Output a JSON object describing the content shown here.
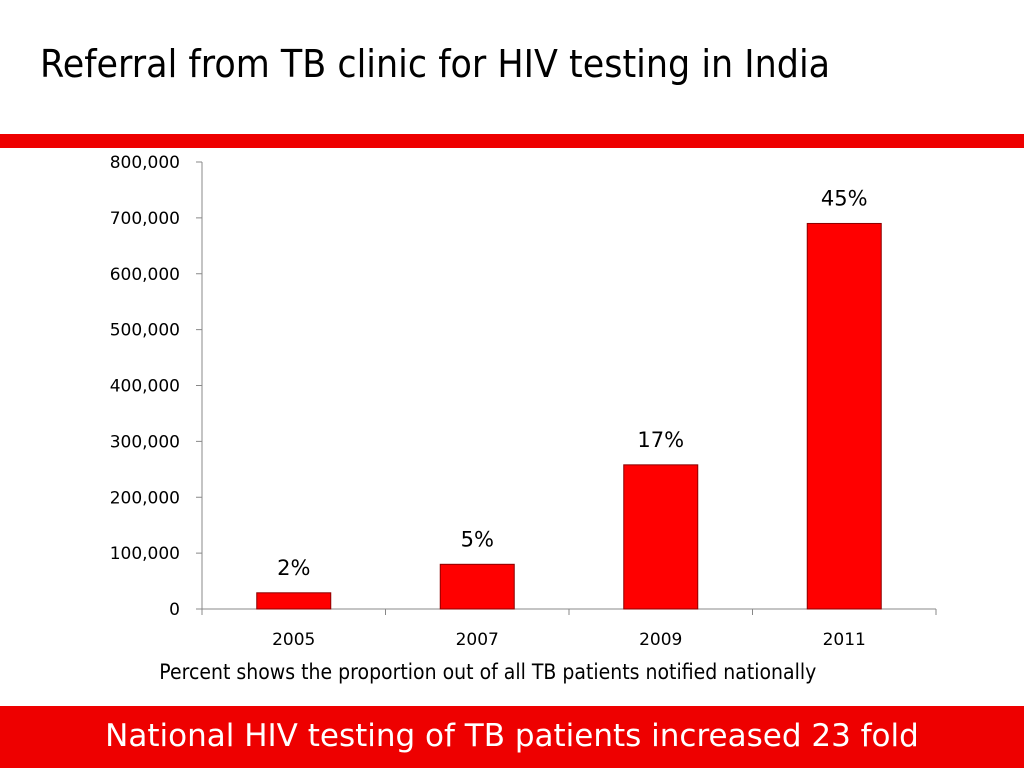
{
  "slide": {
    "title": "Referral from TB clinic for HIV testing in India",
    "footer": "National HIV testing of TB patients increased 23 fold"
  },
  "colors": {
    "accent": "#ee0000",
    "bar_fill": "#ff0000",
    "bar_stroke": "#8b0000",
    "axis": "#888888"
  },
  "chart_data": {
    "type": "bar",
    "categories": [
      "2005",
      "2007",
      "2009",
      "2011"
    ],
    "values": [
      29000,
      80000,
      258000,
      690000
    ],
    "data_labels": [
      "2%",
      "5%",
      "17%",
      "45%"
    ],
    "title": "",
    "xlabel": "Percent shows the proportion out of all TB patients notified nationally",
    "ylabel": "",
    "ylim": [
      0,
      800000
    ],
    "yticks": [
      0,
      100000,
      200000,
      300000,
      400000,
      500000,
      600000,
      700000,
      800000
    ],
    "ytick_labels": [
      "0",
      "100,000",
      "200,000",
      "300,000",
      "400,000",
      "500,000",
      "600,000",
      "700,000",
      "800,000"
    ],
    "grid": false,
    "legend": "none"
  }
}
